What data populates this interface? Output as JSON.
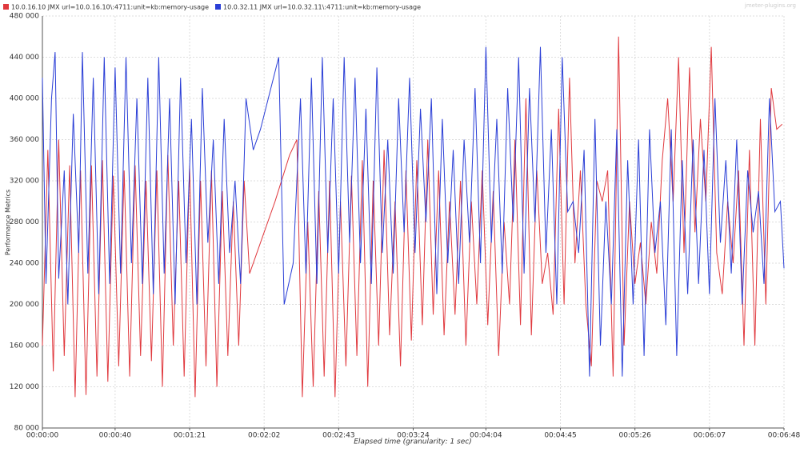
{
  "chart_data": {
    "type": "line",
    "y_label": "Performance Metrics",
    "x_label": "Elapsed time (granularity: 1 sec)",
    "watermark": "jmeter-plugins.org",
    "xlim": [
      0,
      408
    ],
    "xticks": [
      {
        "value": 0,
        "label": "00:00:00"
      },
      {
        "value": 40,
        "label": "00:00:40"
      },
      {
        "value": 81,
        "label": "00:01:21"
      },
      {
        "value": 122,
        "label": "00:02:02"
      },
      {
        "value": 163,
        "label": "00:02:43"
      },
      {
        "value": 204,
        "label": "00:03:24"
      },
      {
        "value": 244,
        "label": "00:04:04"
      },
      {
        "value": 285,
        "label": "00:04:45"
      },
      {
        "value": 326,
        "label": "00:05:26"
      },
      {
        "value": 367,
        "label": "00:06:07"
      },
      {
        "value": 408,
        "label": "00:06:48"
      }
    ],
    "ylim": [
      80000,
      480000
    ],
    "yticks": [
      {
        "value": 80000,
        "label": "80 000"
      },
      {
        "value": 120000,
        "label": "120 000"
      },
      {
        "value": 160000,
        "label": "160 000"
      },
      {
        "value": 200000,
        "label": "200 000"
      },
      {
        "value": 240000,
        "label": "240 000"
      },
      {
        "value": 280000,
        "label": "280 000"
      },
      {
        "value": 320000,
        "label": "320 000"
      },
      {
        "value": 360000,
        "label": "360 000"
      },
      {
        "value": 400000,
        "label": "400 000"
      },
      {
        "value": 440000,
        "label": "440 000"
      },
      {
        "value": 480000,
        "label": "480 000"
      }
    ],
    "grid": true,
    "series": [
      {
        "name": "10.0.16.10 JMX url=10.0.16.10\\:4711:unit=kb:memory-usage",
        "color": "#e0393e",
        "x": [
          0,
          3,
          6,
          9,
          12,
          15,
          18,
          21,
          24,
          27,
          30,
          33,
          36,
          39,
          42,
          45,
          48,
          51,
          54,
          57,
          60,
          63,
          66,
          69,
          72,
          75,
          78,
          81,
          84,
          87,
          90,
          93,
          96,
          99,
          102,
          105,
          108,
          111,
          114,
          120,
          128,
          136,
          140,
          143,
          146,
          149,
          152,
          155,
          158,
          161,
          164,
          167,
          170,
          173,
          176,
          179,
          182,
          185,
          188,
          191,
          194,
          197,
          200,
          203,
          206,
          209,
          212,
          215,
          218,
          221,
          224,
          227,
          230,
          233,
          236,
          239,
          242,
          245,
          248,
          251,
          254,
          257,
          260,
          263,
          266,
          269,
          272,
          275,
          278,
          281,
          284,
          287,
          290,
          293,
          296,
          299,
          302,
          305,
          308,
          311,
          314,
          317,
          320,
          323,
          326,
          329,
          332,
          335,
          338,
          341,
          344,
          347,
          350,
          353,
          356,
          359,
          362,
          365,
          368,
          371,
          374,
          377,
          380,
          383,
          386,
          389,
          392,
          395,
          398,
          401,
          404,
          407
        ],
        "values": [
          160000,
          350000,
          135000,
          360000,
          150000,
          335000,
          110000,
          330000,
          112000,
          335000,
          130000,
          340000,
          125000,
          325000,
          140000,
          330000,
          130000,
          335000,
          150000,
          320000,
          145000,
          330000,
          120000,
          345000,
          160000,
          320000,
          130000,
          335000,
          110000,
          320000,
          140000,
          330000,
          120000,
          310000,
          150000,
          300000,
          160000,
          320000,
          230000,
          260000,
          300000,
          345000,
          360000,
          110000,
          280000,
          120000,
          310000,
          130000,
          320000,
          110000,
          300000,
          140000,
          325000,
          150000,
          340000,
          120000,
          320000,
          160000,
          350000,
          170000,
          300000,
          140000,
          330000,
          165000,
          340000,
          180000,
          360000,
          190000,
          330000,
          170000,
          300000,
          190000,
          320000,
          160000,
          300000,
          200000,
          330000,
          180000,
          310000,
          150000,
          280000,
          200000,
          360000,
          180000,
          400000,
          170000,
          330000,
          220000,
          250000,
          190000,
          390000,
          200000,
          420000,
          240000,
          330000,
          200000,
          140000,
          320000,
          300000,
          330000,
          130000,
          460000,
          160000,
          300000,
          220000,
          260000,
          200000,
          280000,
          230000,
          340000,
          400000,
          300000,
          440000,
          250000,
          430000,
          270000,
          380000,
          300000,
          450000,
          250000,
          210000,
          300000,
          240000,
          330000,
          160000,
          350000,
          160000,
          380000,
          200000,
          410000,
          370000,
          375000
        ]
      },
      {
        "name": "10.0.32.11 JMX url=10.0.32.11\\:4711:unit=kb:memory-usage",
        "color": "#2a3ed6",
        "x": [
          0,
          2,
          5,
          7,
          9,
          12,
          14,
          17,
          20,
          22,
          25,
          28,
          31,
          34,
          37,
          40,
          43,
          46,
          49,
          52,
          55,
          58,
          61,
          64,
          67,
          70,
          73,
          76,
          79,
          82,
          85,
          88,
          91,
          94,
          97,
          100,
          103,
          106,
          109,
          112,
          116,
          120,
          130,
          133,
          138,
          142,
          145,
          148,
          151,
          154,
          157,
          160,
          163,
          166,
          169,
          172,
          175,
          178,
          181,
          184,
          187,
          190,
          193,
          196,
          199,
          202,
          205,
          208,
          211,
          214,
          217,
          220,
          223,
          226,
          229,
          232,
          235,
          238,
          241,
          244,
          247,
          250,
          253,
          256,
          259,
          262,
          265,
          268,
          271,
          274,
          277,
          280,
          283,
          286,
          289,
          292,
          295,
          298,
          301,
          304,
          307,
          310,
          313,
          316,
          319,
          322,
          325,
          328,
          331,
          334,
          337,
          340,
          343,
          346,
          349,
          352,
          355,
          358,
          361,
          364,
          367,
          370,
          373,
          376,
          379,
          382,
          385,
          388,
          391,
          394,
          397,
          400,
          403,
          406,
          408
        ],
        "values": [
          420000,
          220000,
          400000,
          445000,
          225000,
          330000,
          200000,
          385000,
          250000,
          445000,
          230000,
          420000,
          210000,
          440000,
          220000,
          430000,
          230000,
          440000,
          240000,
          400000,
          220000,
          420000,
          210000,
          440000,
          230000,
          400000,
          200000,
          420000,
          240000,
          380000,
          200000,
          410000,
          260000,
          360000,
          220000,
          380000,
          250000,
          320000,
          220000,
          400000,
          350000,
          370000,
          440000,
          200000,
          240000,
          400000,
          230000,
          420000,
          220000,
          440000,
          250000,
          400000,
          230000,
          440000,
          260000,
          420000,
          240000,
          390000,
          220000,
          430000,
          250000,
          360000,
          230000,
          400000,
          270000,
          420000,
          250000,
          390000,
          280000,
          400000,
          210000,
          380000,
          240000,
          350000,
          220000,
          360000,
          260000,
          410000,
          240000,
          450000,
          260000,
          380000,
          230000,
          410000,
          280000,
          440000,
          230000,
          410000,
          280000,
          450000,
          250000,
          370000,
          200000,
          440000,
          290000,
          300000,
          250000,
          350000,
          130000,
          380000,
          160000,
          300000,
          200000,
          370000,
          130000,
          340000,
          200000,
          360000,
          150000,
          370000,
          250000,
          300000,
          180000,
          370000,
          150000,
          340000,
          210000,
          360000,
          220000,
          350000,
          210000,
          400000,
          260000,
          340000,
          230000,
          360000,
          200000,
          330000,
          270000,
          310000,
          220000,
          400000,
          290000,
          300000,
          235000
        ]
      }
    ]
  }
}
